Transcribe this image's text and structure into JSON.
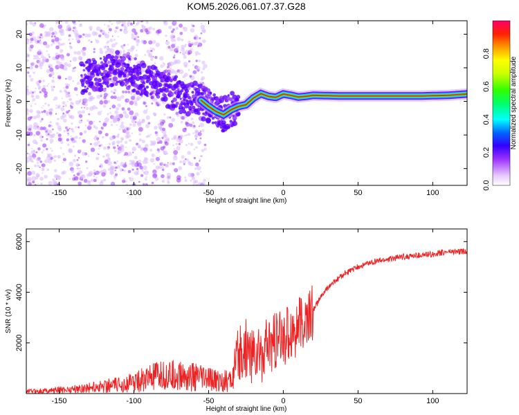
{
  "figure": {
    "title": "KOM5.2026.061.07.37.G28"
  },
  "chart_data": [
    {
      "type": "heatmap",
      "name": "spectrogram",
      "xlabel": "Height of straight line (km)",
      "ylabel": "Frequency (Hz)",
      "xlim": [
        -172,
        123
      ],
      "ylim": [
        -25,
        24
      ],
      "xticks": [
        -150,
        -100,
        -50,
        0,
        50,
        100
      ],
      "yticks": [
        -20,
        -10,
        0,
        10,
        20
      ],
      "ridge": {
        "x": [
          -130,
          -120,
          -110,
          -100,
          -90,
          -80,
          -70,
          -60,
          -55,
          -50,
          -45,
          -40,
          -35,
          -30,
          -25,
          -20,
          -15,
          -10,
          -5,
          0,
          5,
          10,
          15,
          20,
          30,
          40,
          50,
          60,
          70,
          80,
          90,
          100,
          110,
          123
        ],
        "y": [
          7,
          9,
          10,
          8,
          6,
          4,
          2,
          0.5,
          0.3,
          -1.5,
          -3,
          -4,
          -2.5,
          -1.5,
          -1,
          1,
          2.3,
          1.5,
          1.2,
          2.2,
          1.8,
          1.3,
          1.5,
          1.8,
          1.7,
          1.6,
          1.6,
          1.6,
          1.6,
          1.6,
          1.6,
          1.7,
          1.8,
          2.2
        ]
      },
      "colorbar": {
        "label": "Normalized spectral amplitude",
        "ticks": [
          "0.0",
          "0.2",
          "0.4",
          "0.6",
          "0.8"
        ],
        "tick_values": [
          0,
          0.2,
          0.4,
          0.6,
          0.8
        ],
        "range": [
          0,
          1
        ]
      }
    },
    {
      "type": "line",
      "name": "snr",
      "xlabel": "Height of straight line (km)",
      "ylabel": "SNR (10 * v/v)",
      "xlim": [
        -172,
        123
      ],
      "ylim": [
        0,
        6500
      ],
      "xticks": [
        -150,
        -100,
        -50,
        0,
        50,
        100
      ],
      "yticks": [
        2000,
        4000,
        6000
      ],
      "series": [
        {
          "name": "SNR",
          "color": "#ee2222",
          "x": [
            -172,
            -160,
            -150,
            -140,
            -130,
            -120,
            -110,
            -100,
            -90,
            -80,
            -70,
            -60,
            -50,
            -40,
            -35,
            -30,
            -25,
            -20,
            -15,
            -10,
            -5,
            0,
            5,
            10,
            15,
            20,
            25,
            30,
            40,
            50,
            60,
            70,
            80,
            90,
            100,
            110,
            123
          ],
          "y": [
            90,
            110,
            140,
            180,
            230,
            300,
            340,
            450,
            600,
            700,
            700,
            650,
            550,
            480,
            500,
            1400,
            1800,
            1500,
            1600,
            1800,
            2000,
            2200,
            2500,
            2600,
            2800,
            3300,
            3800,
            4200,
            4700,
            5000,
            5200,
            5300,
            5400,
            5450,
            5500,
            5600,
            5600
          ]
        }
      ]
    }
  ]
}
